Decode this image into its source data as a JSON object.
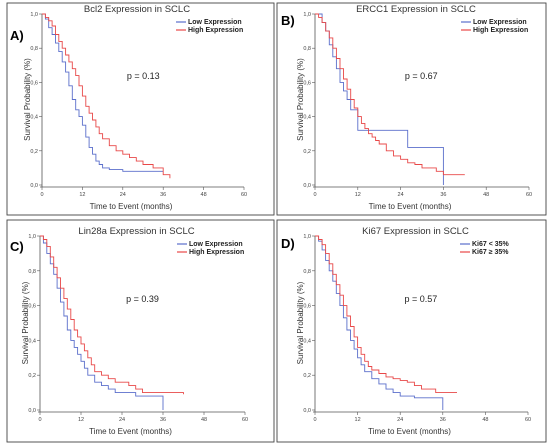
{
  "chart_data": [
    {
      "panel": "A)",
      "type": "line",
      "step": true,
      "title": "Bcl2 Expression in SCLC",
      "xlabel": "Time to Event (months)",
      "ylabel": "Survival Probability (%)",
      "xlim": [
        0,
        60
      ],
      "ylim": [
        0,
        1.0
      ],
      "xticks": [
        "0",
        "12",
        "24",
        "36",
        "48",
        "60"
      ],
      "yticks": [
        "0,0",
        "0,2",
        "0,4",
        "0,6",
        "0,8",
        "1,0"
      ],
      "annotation": "p = 0.13",
      "legend_position": "top-right",
      "series": [
        {
          "name": "Low Expression",
          "color": "#5b6fcb",
          "x": [
            0,
            1,
            2,
            3,
            4,
            5,
            6,
            7,
            8,
            9,
            10,
            11,
            12,
            13,
            14,
            15,
            16,
            17,
            18,
            20,
            22,
            24,
            36
          ],
          "y": [
            1.0,
            0.97,
            0.92,
            0.88,
            0.83,
            0.78,
            0.72,
            0.66,
            0.58,
            0.5,
            0.44,
            0.4,
            0.35,
            0.28,
            0.22,
            0.18,
            0.14,
            0.12,
            0.1,
            0.09,
            0.09,
            0.08,
            0.08
          ]
        },
        {
          "name": "High Expression",
          "color": "#e84848",
          "x": [
            0,
            1,
            2,
            3,
            4,
            5,
            6,
            7,
            8,
            9,
            10,
            11,
            12,
            13,
            14,
            15,
            16,
            17,
            18,
            20,
            22,
            24,
            26,
            28,
            30,
            33,
            36,
            38
          ],
          "y": [
            1.0,
            0.98,
            0.96,
            0.93,
            0.88,
            0.84,
            0.8,
            0.76,
            0.72,
            0.68,
            0.64,
            0.58,
            0.52,
            0.46,
            0.42,
            0.38,
            0.34,
            0.3,
            0.27,
            0.23,
            0.2,
            0.18,
            0.16,
            0.14,
            0.12,
            0.1,
            0.06,
            0.04
          ]
        }
      ]
    },
    {
      "panel": "B)",
      "type": "line",
      "step": true,
      "title": "ERCC1 Expression in SCLC",
      "xlabel": "Time to Event (months)",
      "ylabel": "Survival Probability (%)",
      "xlim": [
        0,
        60
      ],
      "ylim": [
        0,
        1.0
      ],
      "xticks": [
        "0",
        "12",
        "24",
        "36",
        "48",
        "60"
      ],
      "yticks": [
        "0,0",
        "0,2",
        "0,4",
        "0,6",
        "0,8",
        "1,0"
      ],
      "annotation": "p = 0.67",
      "legend_position": "top-right",
      "series": [
        {
          "name": "Low Expression",
          "color": "#5b6fcb",
          "x": [
            0,
            2,
            3,
            4,
            5,
            6,
            7,
            8,
            9,
            10,
            11,
            12,
            14,
            16,
            18,
            22,
            26,
            30,
            36
          ],
          "y": [
            1.0,
            0.95,
            0.9,
            0.82,
            0.75,
            0.68,
            0.6,
            0.55,
            0.5,
            0.44,
            0.44,
            0.32,
            0.32,
            0.32,
            0.32,
            0.32,
            0.22,
            0.22,
            0.0
          ]
        },
        {
          "name": "High Expression",
          "color": "#e84848",
          "x": [
            0,
            1,
            2,
            3,
            4,
            5,
            6,
            7,
            8,
            9,
            10,
            11,
            12,
            13,
            14,
            15,
            16,
            17,
            18,
            20,
            22,
            24,
            26,
            28,
            30,
            34,
            36,
            42
          ],
          "y": [
            1.0,
            0.98,
            0.95,
            0.9,
            0.86,
            0.8,
            0.74,
            0.68,
            0.62,
            0.56,
            0.5,
            0.45,
            0.4,
            0.36,
            0.33,
            0.3,
            0.28,
            0.26,
            0.24,
            0.2,
            0.17,
            0.15,
            0.13,
            0.12,
            0.1,
            0.08,
            0.06,
            0.06
          ]
        }
      ]
    },
    {
      "panel": "C)",
      "type": "line",
      "step": true,
      "title": "Lin28a Expression in SCLC",
      "xlabel": "Time to Event (months)",
      "ylabel": "Survival Probability (%)",
      "xlim": [
        0,
        60
      ],
      "ylim": [
        0,
        1.0
      ],
      "xticks": [
        "0",
        "12",
        "24",
        "36",
        "48",
        "60"
      ],
      "yticks": [
        "0,0",
        "0,2",
        "0,4",
        "0,6",
        "0,8",
        "1,0"
      ],
      "annotation": "p = 0.39",
      "legend_position": "top-right",
      "series": [
        {
          "name": "Low Expression",
          "color": "#5b6fcb",
          "x": [
            0,
            1,
            2,
            3,
            4,
            5,
            6,
            7,
            8,
            9,
            10,
            11,
            12,
            13,
            14,
            16,
            18,
            20,
            22,
            24,
            28,
            32,
            36
          ],
          "y": [
            1.0,
            0.96,
            0.9,
            0.84,
            0.78,
            0.7,
            0.62,
            0.54,
            0.46,
            0.4,
            0.36,
            0.32,
            0.28,
            0.24,
            0.2,
            0.16,
            0.14,
            0.12,
            0.1,
            0.1,
            0.08,
            0.08,
            0.0
          ]
        },
        {
          "name": "High Expression",
          "color": "#e84848",
          "x": [
            0,
            1,
            2,
            3,
            4,
            5,
            6,
            7,
            8,
            9,
            10,
            11,
            12,
            13,
            14,
            15,
            16,
            18,
            20,
            22,
            24,
            26,
            28,
            30,
            36,
            42
          ],
          "y": [
            1.0,
            0.98,
            0.94,
            0.88,
            0.82,
            0.76,
            0.7,
            0.64,
            0.58,
            0.52,
            0.46,
            0.42,
            0.38,
            0.34,
            0.3,
            0.26,
            0.22,
            0.2,
            0.18,
            0.16,
            0.16,
            0.14,
            0.12,
            0.1,
            0.1,
            0.09
          ]
        }
      ]
    },
    {
      "panel": "D)",
      "type": "line",
      "step": true,
      "title": "Ki67 Expression in SCLC",
      "xlabel": "Time to Event (months)",
      "ylabel": "Survival Probability (%)",
      "xlim": [
        0,
        60
      ],
      "ylim": [
        0,
        1.0
      ],
      "xticks": [
        "0",
        "12",
        "24",
        "36",
        "48",
        "60"
      ],
      "yticks": [
        "0,0",
        "0,2",
        "0,4",
        "0,6",
        "0,8",
        "1,0"
      ],
      "annotation": "p = 0.57",
      "legend_position": "top-right",
      "series": [
        {
          "name": "Ki67 < 35%",
          "color": "#5b6fcb",
          "x": [
            0,
            1,
            2,
            3,
            4,
            5,
            6,
            7,
            8,
            9,
            10,
            11,
            12,
            13,
            14,
            16,
            18,
            20,
            22,
            24,
            28,
            32,
            36
          ],
          "y": [
            1.0,
            0.97,
            0.92,
            0.86,
            0.8,
            0.74,
            0.67,
            0.6,
            0.53,
            0.46,
            0.4,
            0.35,
            0.3,
            0.26,
            0.22,
            0.18,
            0.15,
            0.12,
            0.1,
            0.08,
            0.07,
            0.07,
            0.0
          ]
        },
        {
          "name": "Ki67 ≥ 35%",
          "color": "#e84848",
          "x": [
            0,
            1,
            2,
            3,
            4,
            5,
            6,
            7,
            8,
            9,
            10,
            11,
            12,
            13,
            14,
            15,
            16,
            18,
            20,
            22,
            24,
            26,
            28,
            30,
            34,
            40
          ],
          "y": [
            1.0,
            0.98,
            0.95,
            0.9,
            0.84,
            0.78,
            0.72,
            0.66,
            0.6,
            0.54,
            0.48,
            0.42,
            0.36,
            0.32,
            0.28,
            0.25,
            0.23,
            0.21,
            0.19,
            0.18,
            0.17,
            0.16,
            0.14,
            0.12,
            0.1,
            0.1
          ]
        }
      ]
    }
  ]
}
